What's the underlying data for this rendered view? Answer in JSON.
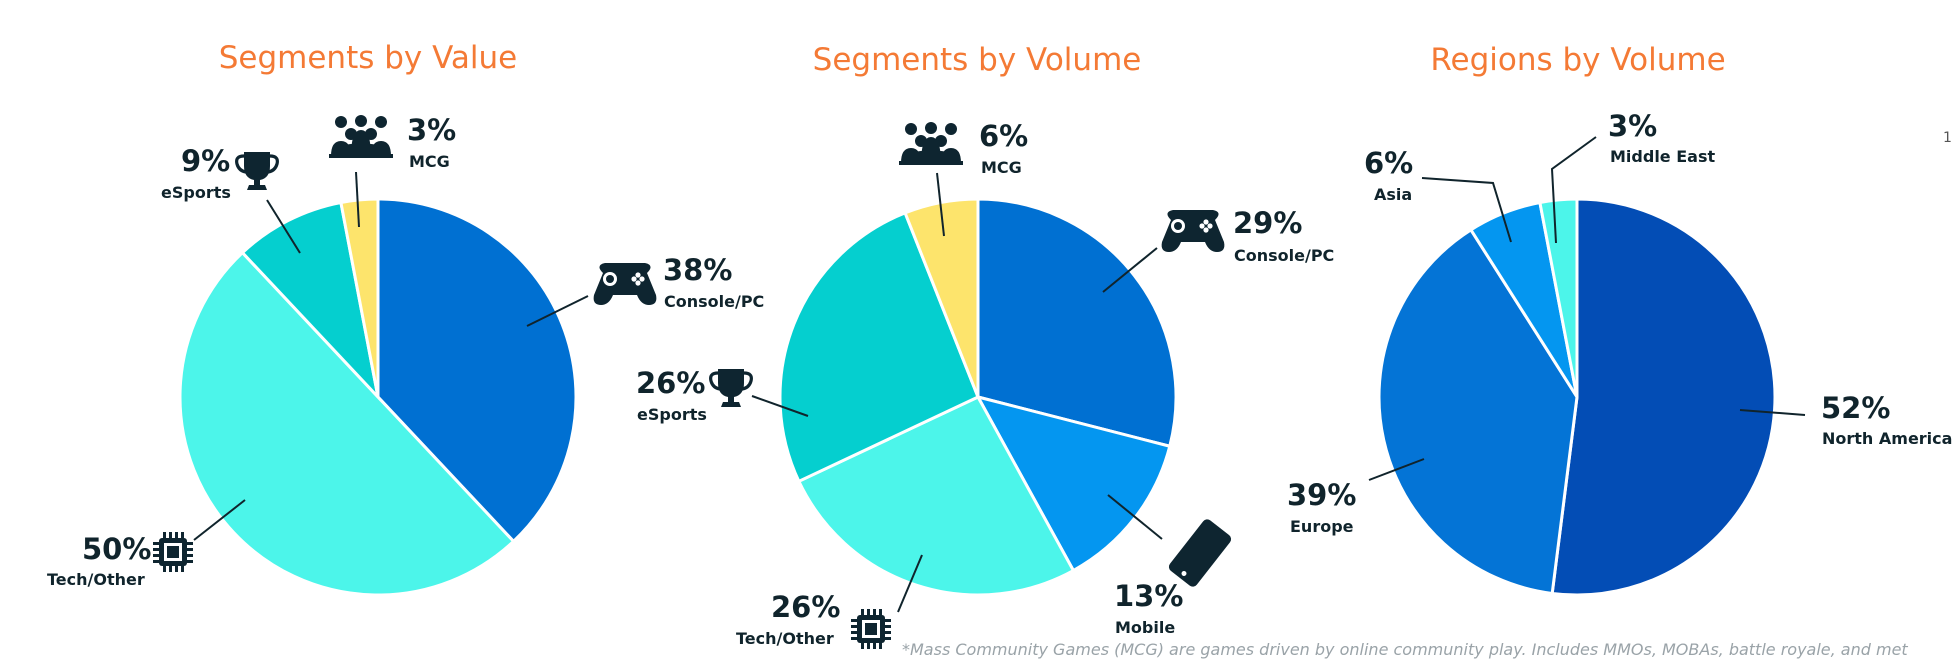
{
  "page_number": "1",
  "footnote": "*Mass Community Games (MCG) are games driven by online community play. Includes MMOs, MOBAs, battle royale, and met",
  "chart_data": [
    {
      "type": "pie",
      "title": "Segments by Value",
      "slices": [
        {
          "label": "Console/PC",
          "value": 38,
          "pct_label": "38%",
          "color": "#0070d2",
          "icon": "gamepad-icon"
        },
        {
          "label": "Tech/Other",
          "value": 50,
          "pct_label": "50%",
          "color": "#4cf5ea",
          "icon": "chip-icon"
        },
        {
          "label": "eSports",
          "value": 9,
          "pct_label": "9%",
          "color": "#05cfcf",
          "icon": "trophy-icon"
        },
        {
          "label": "MCG",
          "value": 3,
          "pct_label": "3%",
          "color": "#fde46c",
          "icon": "group-icon"
        }
      ]
    },
    {
      "type": "pie",
      "title": "Segments by Volume",
      "slices": [
        {
          "label": "Console/PC",
          "value": 29,
          "pct_label": "29%",
          "color": "#0070d2",
          "icon": "gamepad-icon"
        },
        {
          "label": "Mobile",
          "value": 13,
          "pct_label": "13%",
          "color": "#0496f0",
          "icon": "phone-icon"
        },
        {
          "label": "Tech/Other",
          "value": 26,
          "pct_label": "26%",
          "color": "#4cf5ea",
          "icon": "chip-icon"
        },
        {
          "label": "eSports",
          "value": 26,
          "pct_label": "26%",
          "color": "#05cfcf",
          "icon": "trophy-icon"
        },
        {
          "label": "MCG",
          "value": 6,
          "pct_label": "6%",
          "color": "#fde46c",
          "icon": "group-icon"
        }
      ]
    },
    {
      "type": "pie",
      "title": "Regions by Volume",
      "slices": [
        {
          "label": "North America",
          "value": 52,
          "pct_label": "52%",
          "color": "#034db5"
        },
        {
          "label": "Europe",
          "value": 39,
          "pct_label": "39%",
          "color": "#0474d6"
        },
        {
          "label": "Asia",
          "value": 6,
          "pct_label": "6%",
          "color": "#0496f0"
        },
        {
          "label": "Middle East",
          "value": 3,
          "pct_label": "3%",
          "color": "#4cf5ea"
        }
      ]
    }
  ]
}
